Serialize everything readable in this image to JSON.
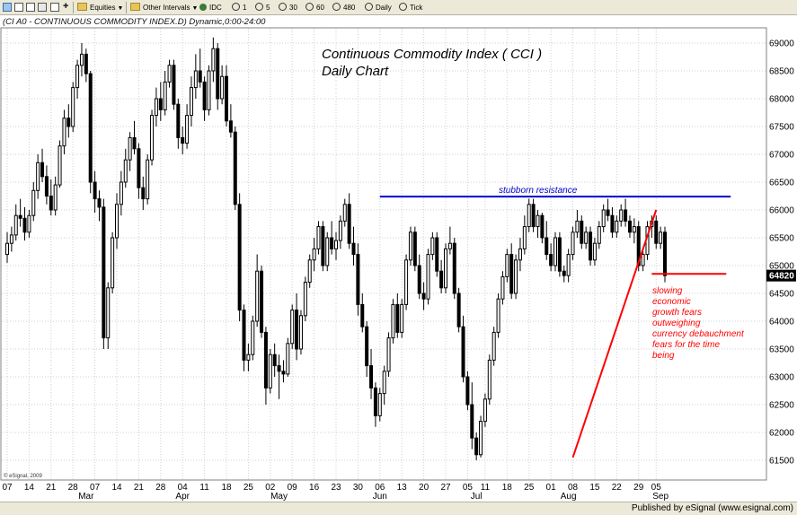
{
  "toolbar": {
    "symbol_type": "Equities",
    "interval_menu": "Other Intervals",
    "source": "IDC",
    "intervals": [
      "1",
      "5",
      "30",
      "60",
      "480",
      "Daily",
      "Tick"
    ]
  },
  "header": {
    "title_line": "(CI A0 - CONTINUOUS COMMODITY INDEX.D) Dynamic,0:00-24:00"
  },
  "footer": {
    "published": "Published by eSignal (www.esignal.com)"
  },
  "chart_data": {
    "type": "candlestick",
    "title": "Continuous Commodity Index ( CCI )",
    "subtitle": "Daily Chart",
    "ylim": [
      61300,
      69200
    ],
    "y_ticks": [
      61500,
      62000,
      62500,
      63000,
      63500,
      64000,
      64500,
      65000,
      65500,
      66000,
      66500,
      67000,
      67500,
      68000,
      68500,
      69000
    ],
    "y_tick_labels": [
      "61500",
      "62000",
      "62500",
      "63000",
      "63500",
      "64000",
      "64500",
      "65000",
      "65500",
      "66000",
      "66500",
      "67000",
      "67500",
      "68000",
      "68500",
      "69000"
    ],
    "last_price": 64820,
    "last_price_label": "64820",
    "day_labels": [
      "07",
      "14",
      "21",
      "28",
      "07",
      "14",
      "21",
      "28",
      "04",
      "11",
      "18",
      "25",
      "02",
      "09",
      "16",
      "23",
      "30",
      "06",
      "13",
      "20",
      "27",
      "05",
      "11",
      "18",
      "25",
      "01",
      "08",
      "15",
      "22",
      "29",
      "05"
    ],
    "day_label_bars": [
      0,
      5,
      10,
      15,
      20,
      25,
      30,
      35,
      40,
      45,
      50,
      55,
      60,
      65,
      70,
      75,
      80,
      85,
      90,
      95,
      100,
      105,
      109,
      114,
      119,
      124,
      129,
      134,
      139,
      144,
      148
    ],
    "month_labels": [
      "Mar",
      "Apr",
      "May",
      "Jun",
      "Jul",
      "Aug",
      "Sep"
    ],
    "month_label_bars": [
      18,
      40,
      62,
      85,
      107,
      128,
      149
    ],
    "watermark": "© eSignal, 2009",
    "annotations": {
      "resistance_label": "stubborn resistance",
      "comment_lines": [
        "slowing",
        "economic",
        "growth fears",
        "outweighing",
        "currency debauchment",
        "fears for the time",
        "being"
      ]
    },
    "resistance": {
      "value": 66240,
      "from_bar": 85,
      "to_bar": 165
    },
    "trendline": {
      "from_bar": 129,
      "from_value": 61550,
      "to_bar": 148,
      "to_value": 66000
    },
    "support_line": {
      "value": 64850,
      "from_bar": 147,
      "to_bar": 164
    },
    "colors": {
      "resistance": "#0000cc",
      "trendline": "#ff0000",
      "annotation": "#ff0000",
      "candle": "#000000",
      "last_price_bg": "#000000"
    },
    "bars": [
      [
        65200,
        65600,
        65050,
        65400
      ],
      [
        65400,
        65700,
        65250,
        65550
      ],
      [
        65550,
        66100,
        65450,
        65900
      ],
      [
        65900,
        66200,
        65700,
        65850
      ],
      [
        65850,
        66050,
        65450,
        65600
      ],
      [
        65600,
        66000,
        65500,
        65900
      ],
      [
        65900,
        66500,
        65800,
        66350
      ],
      [
        66350,
        67000,
        66200,
        66850
      ],
      [
        66850,
        67100,
        66500,
        66600
      ],
      [
        66600,
        66800,
        66100,
        66250
      ],
      [
        66250,
        66550,
        65900,
        66000
      ],
      [
        66000,
        66600,
        65900,
        66450
      ],
      [
        66450,
        67250,
        66400,
        67150
      ],
      [
        67150,
        67800,
        67000,
        67650
      ],
      [
        67650,
        67900,
        67300,
        67500
      ],
      [
        67500,
        68300,
        67400,
        68200
      ],
      [
        68200,
        68700,
        68000,
        68600
      ],
      [
        68600,
        69000,
        68400,
        68800
      ],
      [
        68800,
        68900,
        68300,
        68450
      ],
      [
        68450,
        68500,
        66300,
        66500
      ],
      [
        66500,
        66700,
        65950,
        66200
      ],
      [
        66200,
        66350,
        65800,
        66050
      ],
      [
        66050,
        66200,
        63500,
        63700
      ],
      [
        63700,
        64700,
        63500,
        64600
      ],
      [
        64600,
        65600,
        64500,
        65500
      ],
      [
        65500,
        66300,
        65300,
        66100
      ],
      [
        66100,
        66700,
        65900,
        66500
      ],
      [
        66500,
        67100,
        66400,
        66900
      ],
      [
        66900,
        67400,
        66700,
        67300
      ],
      [
        67300,
        67600,
        67000,
        67100
      ],
      [
        67100,
        67200,
        66200,
        66400
      ],
      [
        66400,
        66600,
        66000,
        66200
      ],
      [
        66200,
        67000,
        66100,
        66900
      ],
      [
        66900,
        67800,
        66800,
        67700
      ],
      [
        67700,
        68200,
        67500,
        68000
      ],
      [
        68000,
        68300,
        67600,
        67800
      ],
      [
        67800,
        68500,
        67700,
        68300
      ],
      [
        68300,
        68700,
        68200,
        68600
      ],
      [
        68600,
        68700,
        67800,
        67900
      ],
      [
        67900,
        68000,
        67100,
        67300
      ],
      [
        67300,
        67500,
        67000,
        67200
      ],
      [
        67200,
        67900,
        67100,
        67700
      ],
      [
        67700,
        68400,
        67500,
        68200
      ],
      [
        68200,
        68800,
        68000,
        68500
      ],
      [
        68500,
        68900,
        68200,
        68300
      ],
      [
        68300,
        68400,
        67600,
        67800
      ],
      [
        67800,
        68600,
        67700,
        68500
      ],
      [
        68500,
        69100,
        68300,
        68900
      ],
      [
        68900,
        69000,
        67800,
        68000
      ],
      [
        68000,
        68600,
        67900,
        68400
      ],
      [
        68400,
        68600,
        67500,
        67600
      ],
      [
        67600,
        67900,
        67300,
        67400
      ],
      [
        67400,
        67500,
        66000,
        66100
      ],
      [
        66100,
        66300,
        64000,
        64200
      ],
      [
        64200,
        64300,
        63100,
        63300
      ],
      [
        63300,
        63600,
        63100,
        63400
      ],
      [
        63400,
        64100,
        63300,
        64000
      ],
      [
        64000,
        65200,
        63900,
        64900
      ],
      [
        64900,
        65000,
        63700,
        63800
      ],
      [
        63800,
        63900,
        62500,
        62800
      ],
      [
        62800,
        63500,
        62700,
        63400
      ],
      [
        63400,
        63600,
        63000,
        63200
      ],
      [
        63200,
        63400,
        62600,
        63100
      ],
      [
        63100,
        63300,
        62900,
        63050
      ],
      [
        63050,
        63700,
        63000,
        63600
      ],
      [
        63600,
        64300,
        63500,
        64200
      ],
      [
        64200,
        64500,
        63300,
        63500
      ],
      [
        63500,
        64200,
        63400,
        64100
      ],
      [
        64100,
        64800,
        64000,
        64700
      ],
      [
        64700,
        65200,
        64600,
        65100
      ],
      [
        65100,
        65500,
        64900,
        65300
      ],
      [
        65300,
        65800,
        65200,
        65700
      ],
      [
        65700,
        65800,
        64900,
        65000
      ],
      [
        65000,
        65600,
        64900,
        65500
      ],
      [
        65500,
        65800,
        65200,
        65300
      ],
      [
        65300,
        65600,
        65100,
        65450
      ],
      [
        65450,
        65900,
        65300,
        65800
      ],
      [
        65800,
        66200,
        65700,
        66100
      ],
      [
        66100,
        66300,
        65300,
        65400
      ],
      [
        65400,
        65700,
        65000,
        65200
      ],
      [
        65200,
        65400,
        64100,
        64300
      ],
      [
        64300,
        64500,
        63800,
        63900
      ],
      [
        63900,
        64000,
        63000,
        63200
      ],
      [
        63200,
        63500,
        62600,
        62800
      ],
      [
        62800,
        62900,
        62100,
        62300
      ],
      [
        62300,
        62800,
        62200,
        62700
      ],
      [
        62700,
        63200,
        62500,
        63100
      ],
      [
        63100,
        63800,
        63000,
        63700
      ],
      [
        63700,
        64400,
        63600,
        64300
      ],
      [
        64300,
        64500,
        63700,
        63800
      ],
      [
        63800,
        64400,
        63700,
        64300
      ],
      [
        64300,
        65200,
        64200,
        65100
      ],
      [
        65100,
        65700,
        65000,
        65600
      ],
      [
        65600,
        65700,
        64900,
        65000
      ],
      [
        65000,
        65200,
        64400,
        64500
      ],
      [
        64500,
        64700,
        64200,
        64400
      ],
      [
        64400,
        65300,
        64300,
        65200
      ],
      [
        65200,
        65600,
        65100,
        65500
      ],
      [
        65500,
        65600,
        64800,
        64900
      ],
      [
        64900,
        65100,
        64500,
        64600
      ],
      [
        64600,
        65400,
        64500,
        65300
      ],
      [
        65300,
        65700,
        65200,
        65400
      ],
      [
        65400,
        65500,
        64400,
        64500
      ],
      [
        64500,
        64600,
        63800,
        63900
      ],
      [
        63900,
        64100,
        62900,
        63000
      ],
      [
        63000,
        63100,
        62400,
        62500
      ],
      [
        62500,
        62900,
        61700,
        61900
      ],
      [
        61900,
        62000,
        61500,
        61600
      ],
      [
        61600,
        62300,
        61550,
        62200
      ],
      [
        62200,
        62700,
        62100,
        62600
      ],
      [
        62600,
        63400,
        62500,
        63300
      ],
      [
        63300,
        63900,
        63200,
        63800
      ],
      [
        63800,
        64500,
        63700,
        64400
      ],
      [
        64400,
        64900,
        64300,
        64800
      ],
      [
        64800,
        65300,
        64700,
        65200
      ],
      [
        65200,
        65400,
        64400,
        64500
      ],
      [
        64500,
        65200,
        64400,
        65100
      ],
      [
        65100,
        65500,
        64900,
        65300
      ],
      [
        65300,
        65900,
        65200,
        65700
      ],
      [
        65700,
        66200,
        65600,
        66100
      ],
      [
        66100,
        66200,
        65600,
        65700
      ],
      [
        65700,
        66000,
        65500,
        65900
      ],
      [
        65900,
        65950,
        65400,
        65500
      ],
      [
        65500,
        65800,
        65100,
        65200
      ],
      [
        65200,
        65400,
        64900,
        65000
      ],
      [
        65000,
        65600,
        64900,
        65500
      ],
      [
        65500,
        65600,
        64800,
        64900
      ],
      [
        64900,
        65000,
        64700,
        64820
      ],
      [
        64820,
        65300,
        64700,
        65200
      ],
      [
        65200,
        65700,
        65100,
        65600
      ],
      [
        65600,
        66000,
        65500,
        65800
      ],
      [
        65800,
        65900,
        65300,
        65400
      ],
      [
        65400,
        65700,
        65300,
        65600
      ],
      [
        65600,
        65700,
        65000,
        65100
      ],
      [
        65100,
        65500,
        65000,
        65400
      ],
      [
        65400,
        65800,
        65300,
        65700
      ],
      [
        65700,
        66100,
        65600,
        66000
      ],
      [
        66000,
        66200,
        65800,
        65900
      ],
      [
        65900,
        66050,
        65500,
        65600
      ],
      [
        65600,
        65900,
        65500,
        65800
      ],
      [
        65800,
        66100,
        65700,
        66000
      ],
      [
        66000,
        66200,
        65700,
        65800
      ],
      [
        65800,
        65900,
        65500,
        65600
      ],
      [
        65600,
        65850,
        65400,
        65700
      ],
      [
        65700,
        65800,
        64900,
        65000
      ],
      [
        65000,
        65300,
        64900,
        65200
      ],
      [
        65200,
        65800,
        65100,
        65700
      ],
      [
        65700,
        65900,
        65500,
        65800
      ],
      [
        65800,
        65900,
        65300,
        65400
      ],
      [
        65400,
        65700,
        65300,
        65600
      ],
      [
        65600,
        65700,
        64700,
        64820
      ]
    ]
  }
}
